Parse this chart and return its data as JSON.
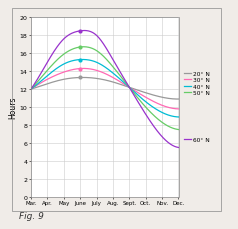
{
  "title": "",
  "ylabel": "Hours",
  "xlabel": "",
  "months": [
    "Mar.",
    "Apr.",
    "May",
    "June",
    "July",
    "Aug.",
    "Sept.",
    "Oct.",
    "Nov.",
    "Dec."
  ],
  "month_indices": [
    0,
    1,
    2,
    3,
    4,
    5,
    6,
    7,
    8,
    9
  ],
  "ylim": [
    0,
    20
  ],
  "yticks": [
    0,
    2,
    4,
    6,
    8,
    10,
    12,
    14,
    16,
    18,
    20
  ],
  "series": {
    "20N": {
      "color": "#999999",
      "label": "20° N"
    },
    "30N": {
      "color": "#ff69b4",
      "label": "30° N"
    },
    "40N": {
      "color": "#00bcd4",
      "label": "40° N"
    },
    "50N": {
      "color": "#66cc66",
      "label": "50° N"
    },
    "60N": {
      "color": "#9933cc",
      "label": "60° N"
    }
  },
  "daylight_20": [
    12.0,
    12.6,
    13.1,
    13.3,
    13.2,
    12.8,
    12.2,
    11.6,
    11.1,
    10.9
  ],
  "daylight_30": [
    12.0,
    13.1,
    13.9,
    14.3,
    14.1,
    13.3,
    12.2,
    11.1,
    10.2,
    9.8
  ],
  "daylight_40": [
    12.0,
    13.5,
    14.8,
    15.3,
    15.0,
    13.8,
    12.2,
    10.6,
    9.4,
    8.9
  ],
  "daylight_50": [
    12.0,
    14.1,
    15.9,
    16.7,
    16.3,
    14.5,
    12.2,
    10.0,
    8.3,
    7.5
  ],
  "daylight_60": [
    12.0,
    15.0,
    17.6,
    18.5,
    18.0,
    15.3,
    12.2,
    9.2,
    6.7,
    5.5
  ],
  "background_color": "#ffffff",
  "outer_bg": "#f0ece8",
  "grid_color": "#cccccc",
  "fig_caption": "Fig. 9",
  "figsize": [
    2.38,
    2.3
  ],
  "dpi": 100
}
